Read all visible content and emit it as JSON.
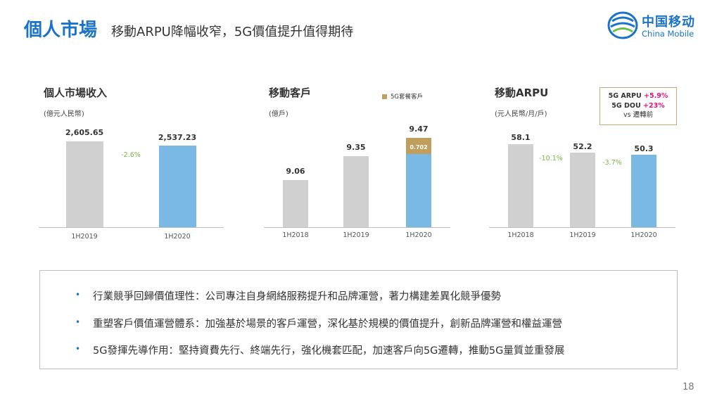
{
  "header": {
    "title": "個人市場",
    "subtitle": "移動ARPU降幅收窄，5G價值提升值得期待",
    "logo_cn": "中国移动",
    "logo_en": "China Mobile"
  },
  "chart_data": [
    {
      "type": "bar",
      "title": "個人市場收入",
      "unit": "(億元人民幣)",
      "categories": [
        "1H2019",
        "1H2020"
      ],
      "values": [
        2605.65,
        2537.23
      ],
      "value_labels": [
        "2,605.65",
        "2,537.23"
      ],
      "colors": [
        "#d0d0d0",
        "#7ab9e3"
      ],
      "changes": [
        "-2.6%"
      ]
    },
    {
      "type": "bar",
      "title": "移動客戶",
      "unit": "(億戶)",
      "categories": [
        "1H2018",
        "1H2019",
        "1H2020"
      ],
      "values": [
        9.06,
        9.35,
        9.47
      ],
      "value_labels": [
        "9.06",
        "9.35",
        "9.47"
      ],
      "colors": [
        "#d0d0d0",
        "#d0d0d0",
        "#7ab9e3"
      ],
      "stack": {
        "name": "5G套餐客戶",
        "category": "1H2020",
        "value": 0.702,
        "label": "0.702",
        "color": "#bf9e5e"
      }
    },
    {
      "type": "bar",
      "title": "移動ARPU",
      "unit": "(元人民幣/月/戶)",
      "categories": [
        "1H2018",
        "1H2019",
        "1H2020"
      ],
      "values": [
        58.1,
        52.2,
        50.3
      ],
      "value_labels": [
        "58.1",
        "52.2",
        "50.3"
      ],
      "colors": [
        "#d0d0d0",
        "#d0d0d0",
        "#7ab9e3"
      ],
      "changes": [
        "-10.1%",
        "-3.7%"
      ]
    }
  ],
  "note": {
    "arpu_label": "5G ARPU ",
    "arpu_value": "+5.9%",
    "dou_label": "5G DOU ",
    "dou_value": "+23%",
    "ref": "vs 遷轉前"
  },
  "bullets": [
    "行業競爭回歸價值理性：公司專注自身網絡服務提升和品牌運營，著力構建差異化競爭優勢",
    "重塑客戶價值運營體系：加強基於場景的客戶運營，深化基於規模的價值提升，創新品牌運營和權益運營",
    "5G發揮先導作用：堅持資費先行、終端先行，強化機套匹配，加速客戶向5G遷轉，推動5G量質並重發展"
  ],
  "bullet_marker": "•",
  "page_number": "18"
}
